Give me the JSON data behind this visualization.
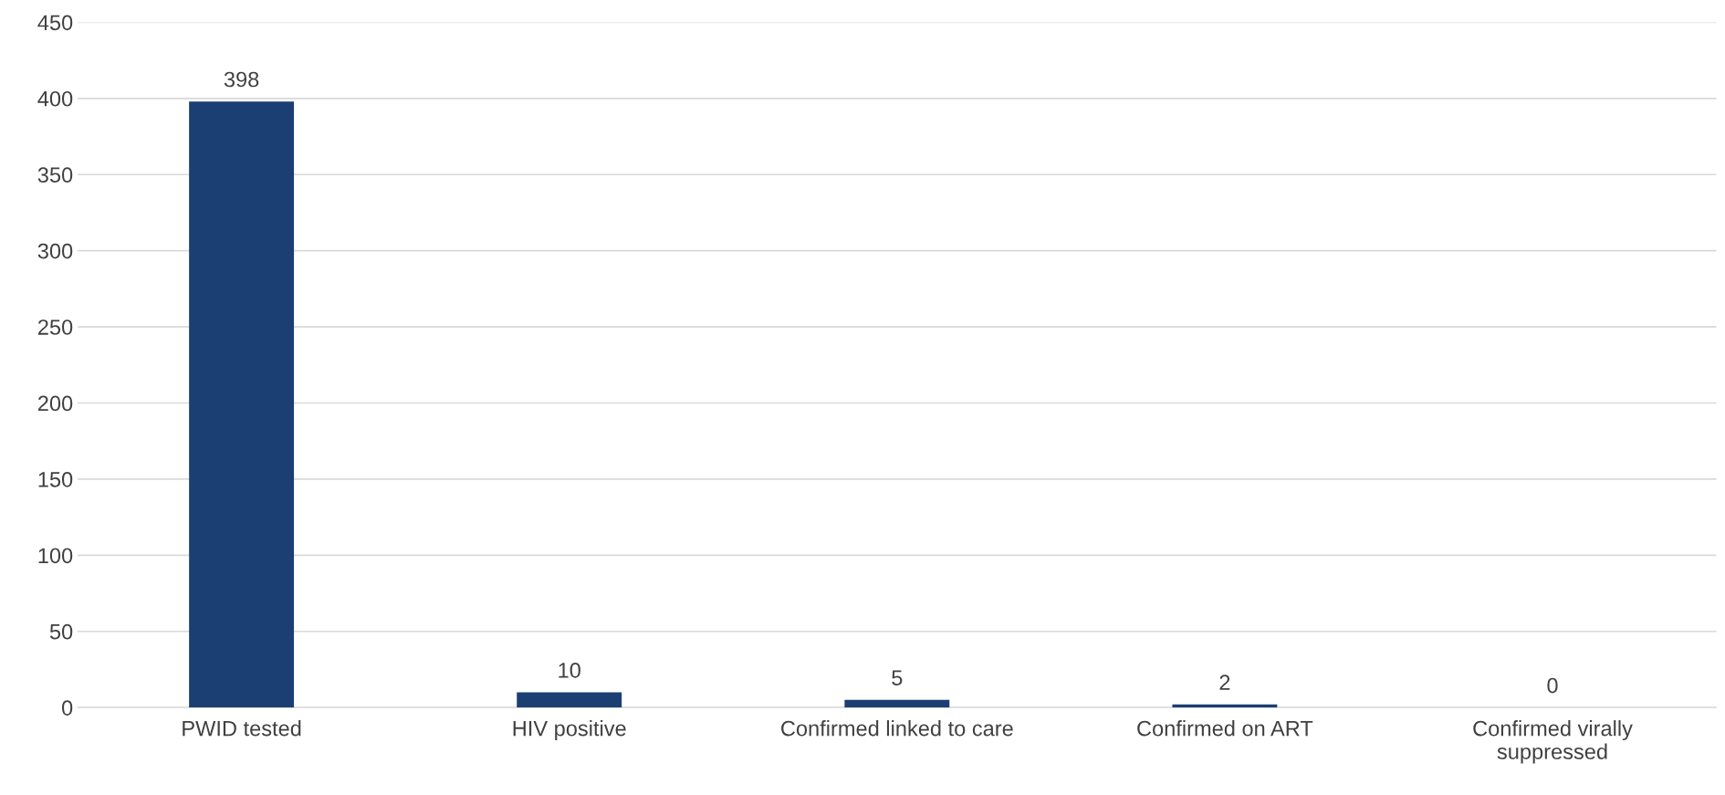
{
  "chart_data": {
    "type": "bar",
    "categories": [
      "PWID tested",
      "HIV positive",
      "Confirmed linked to care",
      "Confirmed on ART",
      "Confirmed virally suppressed"
    ],
    "values": [
      398,
      10,
      5,
      2,
      0
    ],
    "color": "#1b3f73",
    "ylim": [
      0,
      450
    ],
    "yticks": [
      0,
      50,
      100,
      150,
      200,
      250,
      300,
      350,
      400,
      450
    ],
    "grid": "y",
    "data_labels": true
  }
}
